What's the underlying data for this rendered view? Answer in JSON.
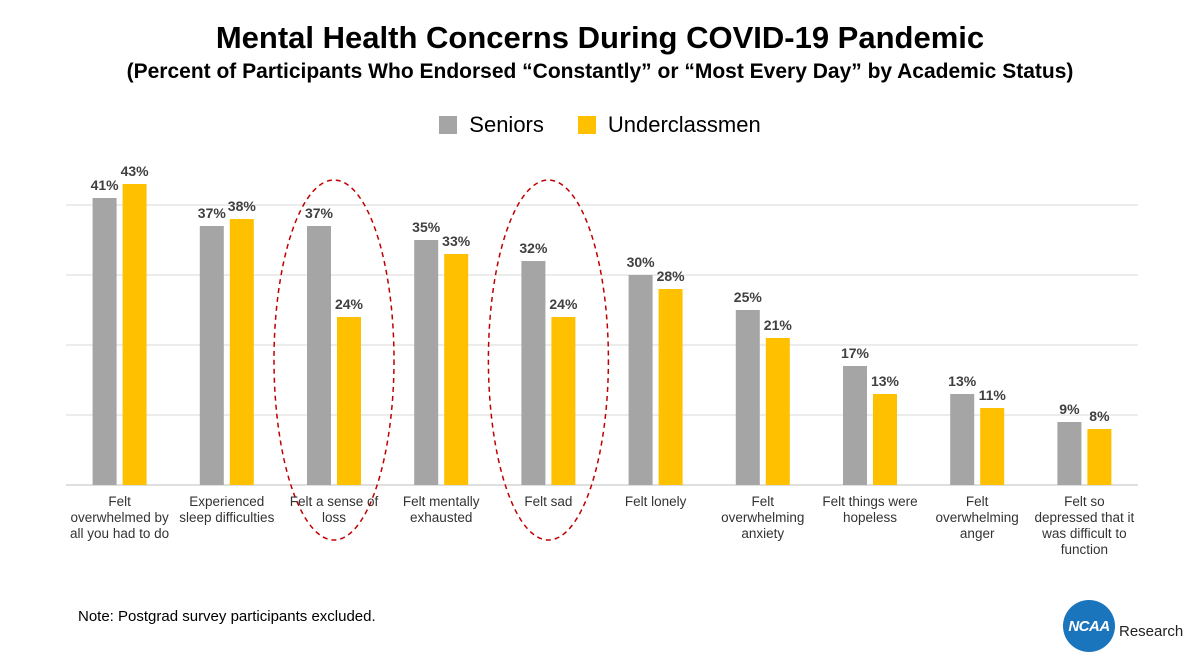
{
  "header": {
    "title": "Mental Health Concerns During COVID-19 Pandemic",
    "subtitle": "(Percent of Participants Who Endorsed “Constantly” or “Most Every Day” by Academic Status)"
  },
  "colors": {
    "seniors": "#a5a5a5",
    "underclassmen": "#ffc000",
    "highlight": "#c00000",
    "grid": "#d9d9d9"
  },
  "chart_data": {
    "type": "bar",
    "title": "Mental Health Concerns During COVID-19 Pandemic",
    "subtitle": "(Percent of Participants Who Endorsed “Constantly” or “Most Every Day” by Academic Status)",
    "categories": [
      "Felt overwhelmed by all you had to do",
      "Experienced sleep difficulties",
      "Felt a sense of loss",
      "Felt mentally exhausted",
      "Felt sad",
      "Felt lonely",
      "Felt overwhelming anxiety",
      "Felt things were hopeless",
      "Felt overwhelming anger",
      "Felt so depressed that it was difficult to function"
    ],
    "series": [
      {
        "name": "Seniors",
        "values": [
          41,
          37,
          37,
          35,
          32,
          30,
          25,
          17,
          13,
          9
        ],
        "labels": [
          "41%",
          "37%",
          "37%",
          "35%",
          "32%",
          "30%",
          "25%",
          "17%",
          "13%",
          "9%"
        ]
      },
      {
        "name": "Underclassmen",
        "values": [
          43,
          38,
          24,
          33,
          24,
          28,
          21,
          13,
          11,
          8
        ],
        "labels": [
          "43%",
          "38%",
          "24%",
          "33%",
          "24%",
          "28%",
          "21%",
          "13%",
          "11%",
          "8%"
        ]
      }
    ],
    "ylim": [
      0,
      50
    ],
    "grid": true,
    "legend": "top-center",
    "highlighted_categories": [
      2,
      4
    ]
  },
  "category_lines": [
    [
      "Felt",
      "overwhelmed by",
      "all you had to do"
    ],
    [
      "Experienced",
      "sleep difficulties"
    ],
    [
      "Felt a sense of",
      "loss"
    ],
    [
      "Felt mentally",
      "exhausted"
    ],
    [
      "Felt sad"
    ],
    [
      "Felt lonely"
    ],
    [
      "Felt",
      "overwhelming",
      "anxiety"
    ],
    [
      "Felt things were",
      "hopeless"
    ],
    [
      "Felt",
      "overwhelming",
      "anger"
    ],
    [
      "Felt so",
      "depressed that it",
      "was difficult to",
      "function"
    ]
  ],
  "legend": {
    "seniors": "Seniors",
    "underclassmen": "Underclassmen"
  },
  "note": "Note: Postgrad survey participants excluded.",
  "logo": {
    "mark": "NCAA",
    "text": "Research"
  }
}
